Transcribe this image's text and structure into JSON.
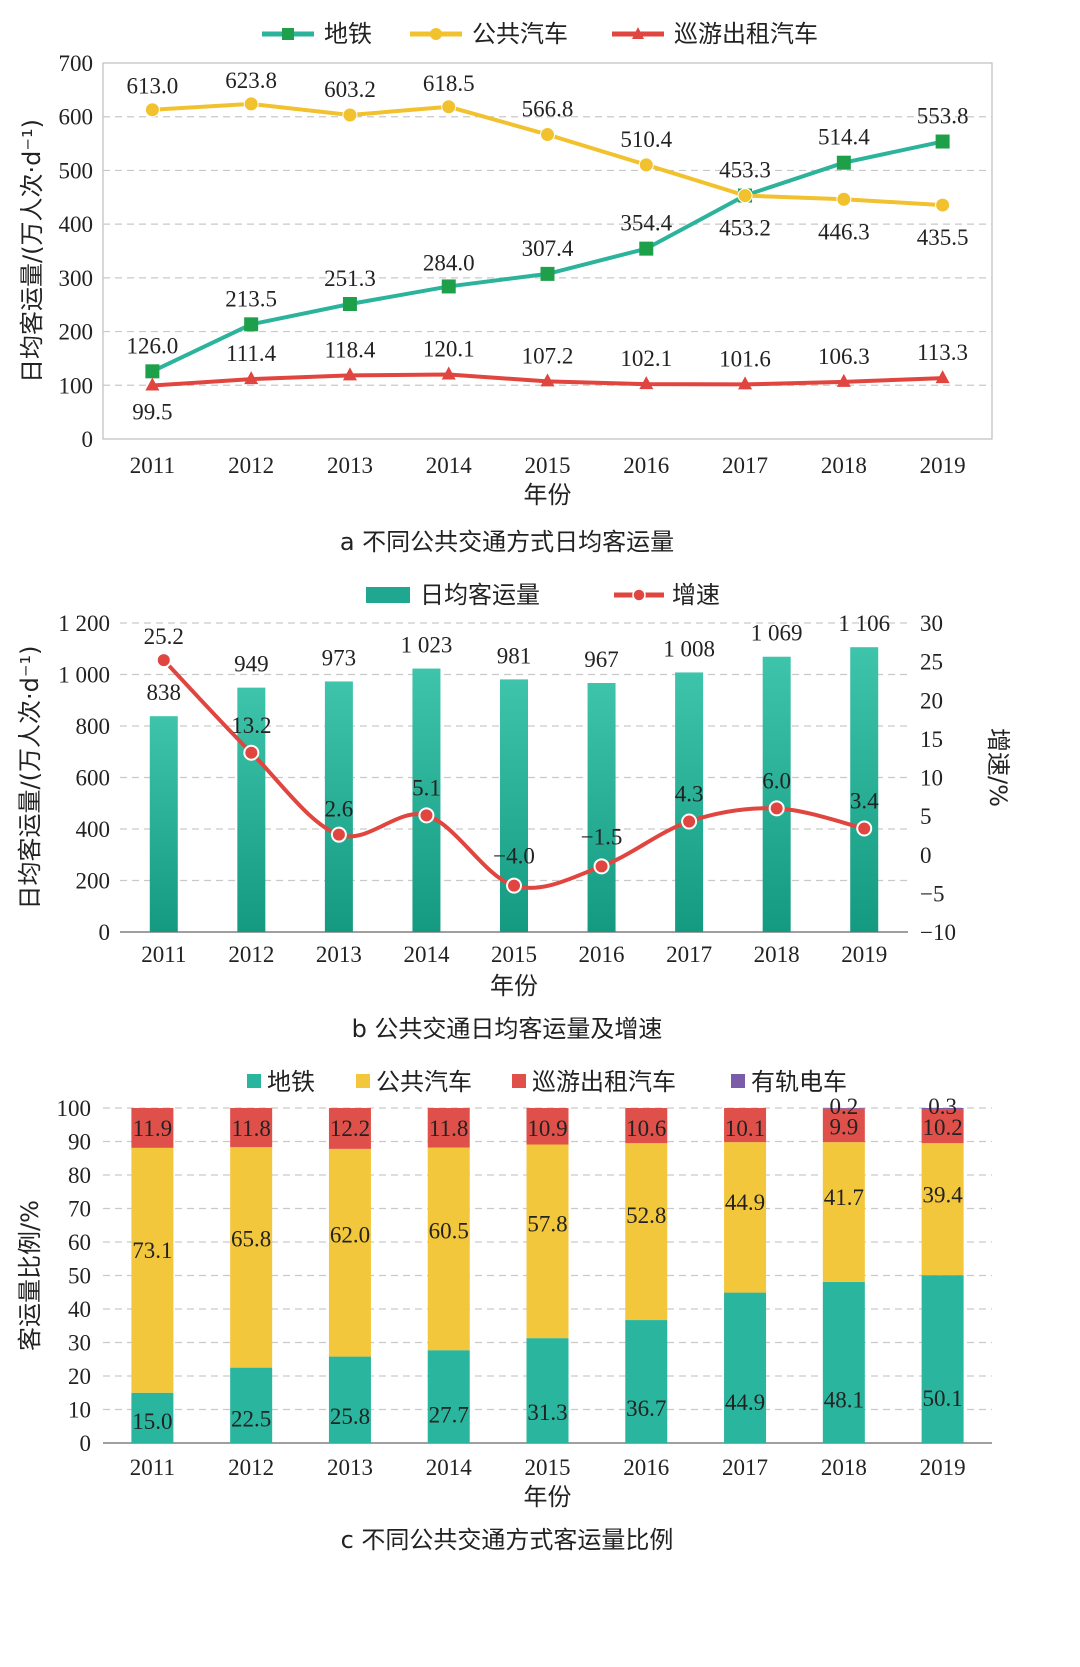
{
  "chart_data": [
    {
      "id": "a",
      "type": "line",
      "caption": "a 不同公共交通方式日均客运量",
      "categories": [
        "2011",
        "2012",
        "2013",
        "2014",
        "2015",
        "2016",
        "2017",
        "2018",
        "2019"
      ],
      "xlabel": "年份",
      "ylabel": "日均客运量/(万人次·d⁻¹)",
      "ylim": [
        0,
        700
      ],
      "yticks": [
        0,
        100,
        200,
        300,
        400,
        500,
        600,
        700
      ],
      "grid": true,
      "legend": "top",
      "series": [
        {
          "name": "地铁",
          "color": "#2bb39b",
          "marker": "square",
          "values": [
            126.0,
            213.5,
            251.3,
            284.0,
            307.4,
            354.4,
            453.3,
            514.4,
            553.8
          ],
          "labels": [
            "126.0",
            "213.5",
            "251.3",
            "284.0",
            "307.4",
            "354.4",
            "453.3",
            "514.4",
            "553.8"
          ]
        },
        {
          "name": "公共汽车",
          "color": "#f2c12e",
          "marker": "circle",
          "values": [
            613.0,
            623.8,
            603.2,
            618.5,
            566.8,
            510.4,
            453.2,
            446.3,
            435.5
          ],
          "labels": [
            "613.0",
            "623.8",
            "603.2",
            "618.5",
            "566.8",
            "510.4",
            "453.2",
            "446.3",
            "435.5"
          ]
        },
        {
          "name": "巡游出租汽车",
          "color": "#e0453f",
          "marker": "triangle",
          "values": [
            99.5,
            111.4,
            118.4,
            120.1,
            107.2,
            102.1,
            101.6,
            106.3,
            113.3
          ],
          "labels": [
            "99.5",
            "111.4",
            "118.4",
            "120.1",
            "107.2",
            "102.1",
            "101.6",
            "106.3",
            "113.3"
          ]
        }
      ]
    },
    {
      "id": "b",
      "type": "bar",
      "caption": "b 公共交通日均客运量及增速",
      "categories": [
        "2011",
        "2012",
        "2013",
        "2014",
        "2015",
        "2016",
        "2017",
        "2018",
        "2019"
      ],
      "xlabel": "年份",
      "ylabel": "日均客运量/(万人次·d⁻¹)",
      "y2label": "增速/%",
      "ylim": [
        0,
        1200
      ],
      "yticks": [
        "0",
        "200",
        "400",
        "600",
        "800",
        "1 000",
        "1 200"
      ],
      "y2lim": [
        -10,
        30
      ],
      "y2ticks": [
        "−10",
        "−5",
        "0",
        "5",
        "10",
        "15",
        "20",
        "25",
        "30"
      ],
      "grid": true,
      "legend": "top",
      "series": [
        {
          "name": "日均客运量",
          "kind": "bar",
          "color": "#1fa88f",
          "values": [
            838,
            949,
            973,
            1023,
            981,
            967,
            1008,
            1069,
            1106
          ],
          "labels": [
            "838",
            "949",
            "973",
            "1 023",
            "981",
            "967",
            "1 008",
            "1 069",
            "1 106"
          ]
        },
        {
          "name": "增速",
          "kind": "line",
          "axis": "right",
          "color": "#e0453f",
          "values": [
            25.2,
            13.2,
            2.6,
            5.1,
            -4.0,
            -1.5,
            4.3,
            6.0,
            3.4
          ],
          "labels": [
            "25.2",
            "13.2",
            "2.6",
            "5.1",
            "−4.0",
            "−1.5",
            "4.3",
            "6.0",
            "3.4"
          ]
        }
      ]
    },
    {
      "id": "c",
      "type": "bar",
      "stacked": true,
      "caption": "c 不同公共交通方式客运量比例",
      "categories": [
        "2011",
        "2012",
        "2013",
        "2014",
        "2015",
        "2016",
        "2017",
        "2018",
        "2019"
      ],
      "xlabel": "年份",
      "ylabel": "客运量比例/%",
      "ylim": [
        0,
        100
      ],
      "yticks": [
        0,
        10,
        20,
        30,
        40,
        50,
        60,
        70,
        80,
        90,
        100
      ],
      "grid": true,
      "legend": "top",
      "series": [
        {
          "name": "地铁",
          "color": "#2ab59e",
          "values": [
            15.0,
            22.5,
            25.8,
            27.7,
            31.3,
            36.7,
            44.9,
            48.1,
            50.1
          ],
          "labels": [
            "15.0",
            "22.5",
            "25.8",
            "27.7",
            "31.3",
            "36.7",
            "44.9",
            "48.1",
            "50.1"
          ]
        },
        {
          "name": "公共汽车",
          "color": "#f3c73c",
          "values": [
            73.1,
            65.8,
            62.0,
            60.5,
            57.8,
            52.8,
            44.9,
            41.7,
            39.4
          ],
          "labels": [
            "73.1",
            "65.8",
            "62.0",
            "60.5",
            "57.8",
            "52.8",
            "44.9",
            "41.7",
            "39.4"
          ]
        },
        {
          "name": "巡游出租汽车",
          "color": "#e0504a",
          "values": [
            11.9,
            11.8,
            12.2,
            11.8,
            10.9,
            10.6,
            10.1,
            9.9,
            10.2
          ],
          "labels": [
            "11.9",
            "11.8",
            "12.2",
            "11.8",
            "10.9",
            "10.6",
            "10.1",
            "9.9",
            "10.2"
          ]
        },
        {
          "name": "有轨电车",
          "color": "#7a5ca8",
          "values": [
            0,
            0,
            0,
            0,
            0,
            0,
            0,
            0.2,
            0.3
          ],
          "labels": [
            "",
            "",
            "",
            "",
            "",
            "",
            "",
            "0.2",
            "0.3"
          ]
        }
      ]
    }
  ]
}
